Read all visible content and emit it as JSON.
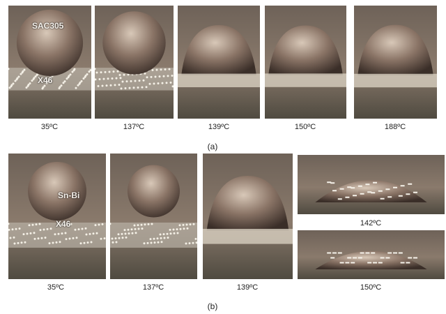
{
  "panel_a": {
    "label": "(a)",
    "overlay_ball": "SAC305",
    "overlay_substrate": "X46",
    "captions": [
      "35ºC",
      "137ºC",
      "139ºC",
      "150ºC",
      "188ºC"
    ]
  },
  "panel_b": {
    "label": "(b)",
    "overlay_ball": "Sn-Bi",
    "overlay_substrate": "X46",
    "captions": [
      "35ºC",
      "137ºC",
      "139ºC",
      "142ºC",
      "150ºC"
    ]
  }
}
